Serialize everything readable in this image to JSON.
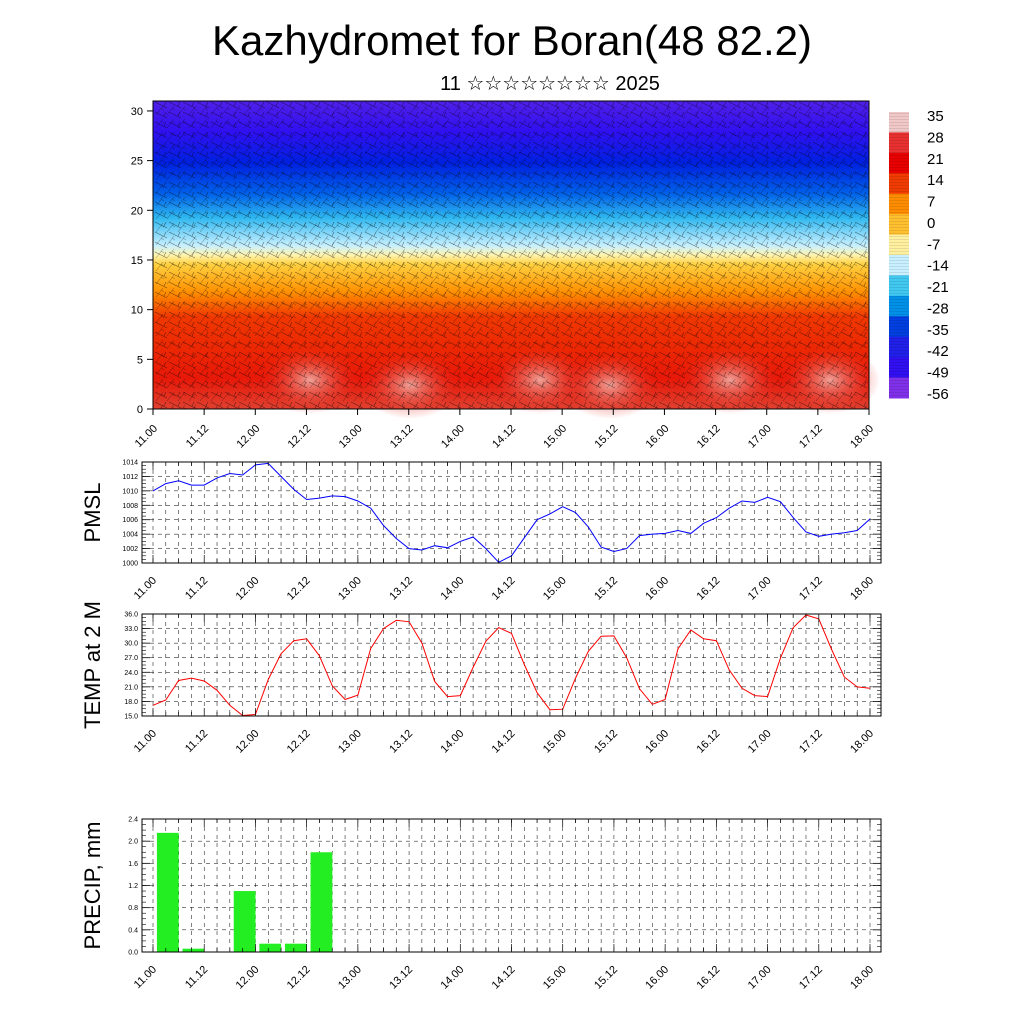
{
  "title": "Kazhydromet for Boran(48 82.2)",
  "subtitle": "11 ☆☆☆☆☆☆☆☆ 2025",
  "time_labels": [
    "11.00",
    "11.12",
    "12.00",
    "12.12",
    "13.00",
    "13.12",
    "14.00",
    "14.12",
    "15.00",
    "15.12",
    "16.00",
    "16.12",
    "17.00",
    "17.12",
    "18.00"
  ],
  "chart_data": [
    {
      "type": "heatmap",
      "name": "temperature-wind-cross-section",
      "title": "",
      "ylabel": "",
      "yticks": [
        0,
        5,
        10,
        15,
        20,
        25,
        30
      ],
      "ylim": [
        0,
        31
      ],
      "colorbar": {
        "labels": [
          "35",
          "28",
          "21",
          "14",
          "7",
          "0",
          "-7",
          "-14",
          "-21",
          "-28",
          "-35",
          "-42",
          "-49",
          "-56"
        ],
        "colors": [
          "#f0c8c8",
          "#e83030",
          "#e80000",
          "#f03c00",
          "#ff8c00",
          "#ffc030",
          "#fff0a0",
          "#c8f0ff",
          "#40c8f0",
          "#0090e8",
          "#0040e0",
          "#2020e8",
          "#3010f0",
          "#8030e8"
        ]
      }
    },
    {
      "type": "line",
      "name": "PMSL",
      "ylabel": "PMSL",
      "ylim": [
        1000,
        1014
      ],
      "yticks": [
        1000,
        1002,
        1004,
        1006,
        1008,
        1010,
        1012,
        1014
      ],
      "color": "#0000ff",
      "values": [
        1010.0,
        1011.0,
        1011.4,
        1010.8,
        1010.8,
        1011.8,
        1012.4,
        1012.2,
        1013.6,
        1013.8,
        1012.0,
        1010.2,
        1008.8,
        1009.0,
        1009.3,
        1009.2,
        1008.6,
        1007.6,
        1005.2,
        1003.4,
        1002.0,
        1001.8,
        1002.4,
        1002.1,
        1003.0,
        1003.6,
        1002.0,
        1000.1,
        1001.0,
        1003.5,
        1006.0,
        1006.8,
        1007.8,
        1007.0,
        1005.0,
        1002.2,
        1001.6,
        1002.0,
        1003.8,
        1004.0,
        1004.1,
        1004.5,
        1004.1,
        1005.5,
        1006.3,
        1007.6,
        1008.6,
        1008.4,
        1009.1,
        1008.5,
        1006.3,
        1004.3,
        1003.7,
        1004.0,
        1004.2,
        1004.5,
        1006.1
      ]
    },
    {
      "type": "line",
      "name": "TEMP at 2 M",
      "ylabel": "TEMP at 2 M",
      "ylim": [
        15,
        36
      ],
      "yticks": [
        15.0,
        18.0,
        21.0,
        24.0,
        27.0,
        30.0,
        33.0,
        36.0
      ],
      "color": "#ff0000",
      "values": [
        17.2,
        18.3,
        22.3,
        22.8,
        22.2,
        20.3,
        17.2,
        15.1,
        15.3,
        22.5,
        27.8,
        30.5,
        30.9,
        27.4,
        21.2,
        18.4,
        19.3,
        28.9,
        33.0,
        34.7,
        34.4,
        30.0,
        22.1,
        19.0,
        19.2,
        25.0,
        30.4,
        33.2,
        32.0,
        25.6,
        19.8,
        16.3,
        16.4,
        22.8,
        28.3,
        31.4,
        31.5,
        27.0,
        20.6,
        17.4,
        18.4,
        28.8,
        32.7,
        30.9,
        30.5,
        24.5,
        20.7,
        19.2,
        19.0,
        26.9,
        33.2,
        35.8,
        35.0,
        28.7,
        23.0,
        21.0,
        20.7
      ]
    },
    {
      "type": "bar",
      "name": "PRECIP, mm",
      "ylabel": "PRECIP, mm",
      "ylim": [
        0,
        2.4
      ],
      "yticks": [
        0.0,
        0.4,
        0.8,
        1.2,
        1.6,
        2.0,
        2.4
      ],
      "color": "#22ee22",
      "x_index": [
        0,
        1,
        2,
        3,
        4,
        5,
        6
      ],
      "values": [
        2.15,
        0.06,
        0.0,
        1.1,
        0.15,
        0.15,
        1.8
      ]
    }
  ]
}
